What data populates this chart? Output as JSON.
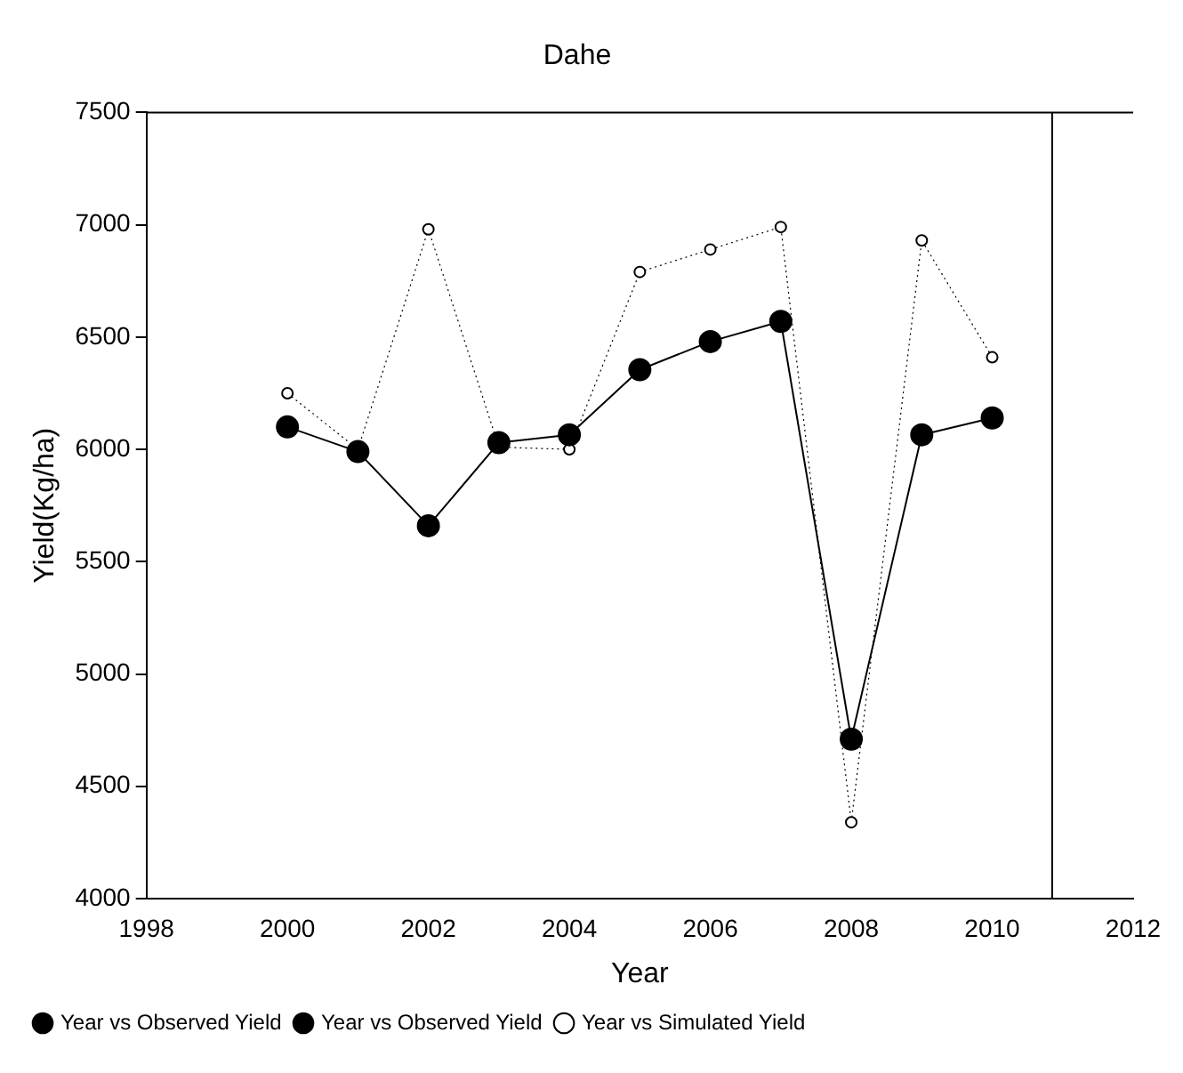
{
  "chart_data": {
    "type": "line",
    "title": "Dahe",
    "xlabel": "Year",
    "ylabel": "Yield(Kg/ha)",
    "x": [
      2000,
      2001,
      2002,
      2003,
      2004,
      2005,
      2006,
      2007,
      2008,
      2009,
      2010
    ],
    "series": [
      {
        "name": "Year vs Observed Yield",
        "type": "scatter",
        "marker": "circle",
        "color": "#000000",
        "values": [
          6100,
          5990,
          5660,
          6030,
          6065,
          6355,
          6480,
          6570,
          4710,
          6065,
          6140
        ]
      },
      {
        "name": "Year vs Observed Yield",
        "type": "line",
        "marker": "circle",
        "line_style": "solid",
        "color": "#000000",
        "values": [
          6100,
          5990,
          5660,
          6030,
          6065,
          6355,
          6480,
          6570,
          4710,
          6065,
          6140
        ]
      },
      {
        "name": "Year vs Simulated Yield",
        "type": "line",
        "marker": "circle",
        "line_style": "dotted",
        "color": "#000000",
        "values": [
          6250,
          6000,
          6980,
          6010,
          6000,
          6790,
          6890,
          6990,
          4340,
          6930,
          6410
        ]
      }
    ],
    "xlim": [
      1998,
      2012
    ],
    "xticks": [
      1998,
      2000,
      2002,
      2004,
      2006,
      2008,
      2010,
      2012
    ],
    "ylim": [
      4000,
      7500
    ],
    "yticks": [
      4000,
      4500,
      5000,
      5500,
      6000,
      6500,
      7000,
      7500
    ],
    "ref_lines": [
      {
        "axis": "x",
        "value": 2010.85,
        "label": null,
        "color": "#000000"
      }
    ],
    "grid": false,
    "legend": "bottom left"
  }
}
